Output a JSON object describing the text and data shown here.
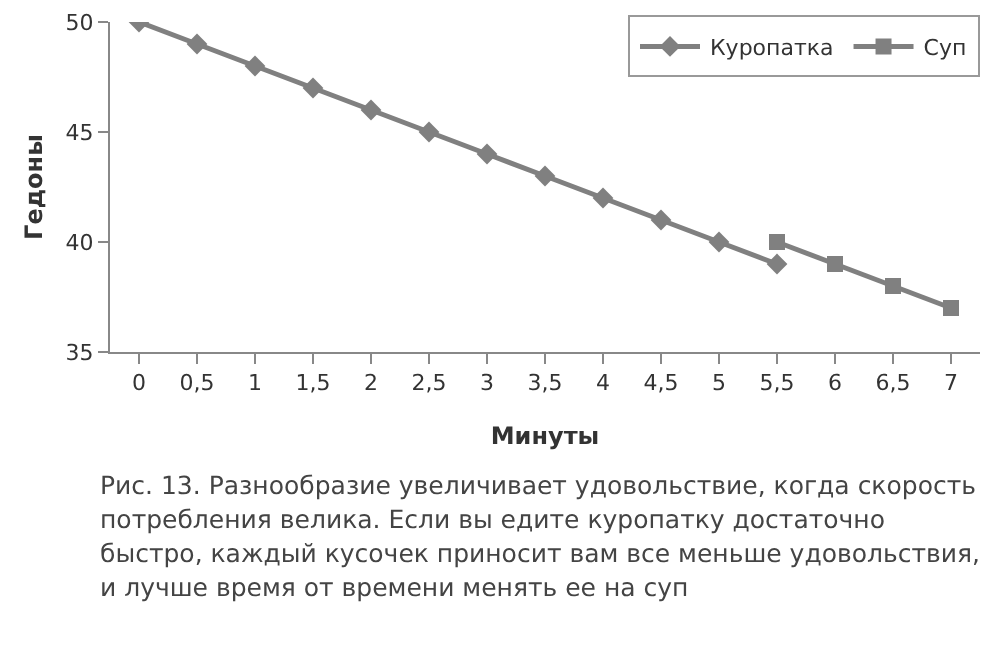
{
  "chart_data": {
    "type": "line",
    "xlabel": "Минуты",
    "ylabel": "Гедоны",
    "categories": [
      "0",
      "0,5",
      "1",
      "1,5",
      "2",
      "2,5",
      "3",
      "3,5",
      "4",
      "4,5",
      "5",
      "5,5",
      "6",
      "6,5",
      "7"
    ],
    "series": [
      {
        "name": "Куропатка",
        "color": "#808080",
        "marker": "diamond",
        "values": [
          50,
          49,
          48,
          47,
          46,
          45,
          44,
          43,
          42,
          41,
          40,
          39,
          null,
          null,
          null
        ]
      },
      {
        "name": "Суп",
        "color": "#808080",
        "marker": "square",
        "values": [
          null,
          null,
          null,
          null,
          null,
          null,
          null,
          null,
          null,
          null,
          null,
          40,
          39,
          38,
          37
        ]
      }
    ],
    "ylim": [
      35,
      50
    ],
    "yticks": [
      35,
      40,
      45,
      50
    ],
    "grid": false,
    "legend": "top right",
    "line_style": "solid",
    "annotations": [
      "Рис. 13. Разнообразие увеличивает удовольствие, когда скорость потребления велика. Если вы едите куропатку достаточно быстро, каждый кусочек приносит вам все меньше удовольствия, и лучше время от времени менять ее на суп"
    ]
  }
}
